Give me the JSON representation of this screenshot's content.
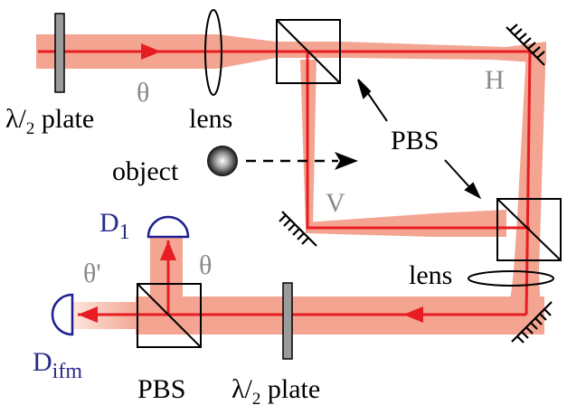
{
  "colors": {
    "beam_wide": "#f3a591",
    "beam_core": "#e81c23",
    "beam_fade": "#fbd9cc",
    "detector": "#1f1f8f",
    "plate": "#9b9b9b",
    "label_gray": "#8a8a8a",
    "label_blue": "#2a2a8a"
  },
  "labels": {
    "half_wave_plate_top": {
      "prefix": "λ/",
      "sub": "2",
      "suffix": " plate"
    },
    "theta_top": "θ",
    "lens_top": "lens",
    "pbs_center": "PBS",
    "object": "object",
    "h_arm": "H",
    "v_arm": "V",
    "detector_1": {
      "base": "D",
      "sub": "1"
    },
    "theta_right": "θ",
    "theta_prime": "θ'",
    "lens_right": "lens",
    "detector_ifm": {
      "base": "D",
      "sub": "ifm"
    },
    "pbs_bottom": "PBS",
    "half_wave_plate_bottom": {
      "prefix": "λ/",
      "sub": "2",
      "suffix": " plate"
    }
  }
}
